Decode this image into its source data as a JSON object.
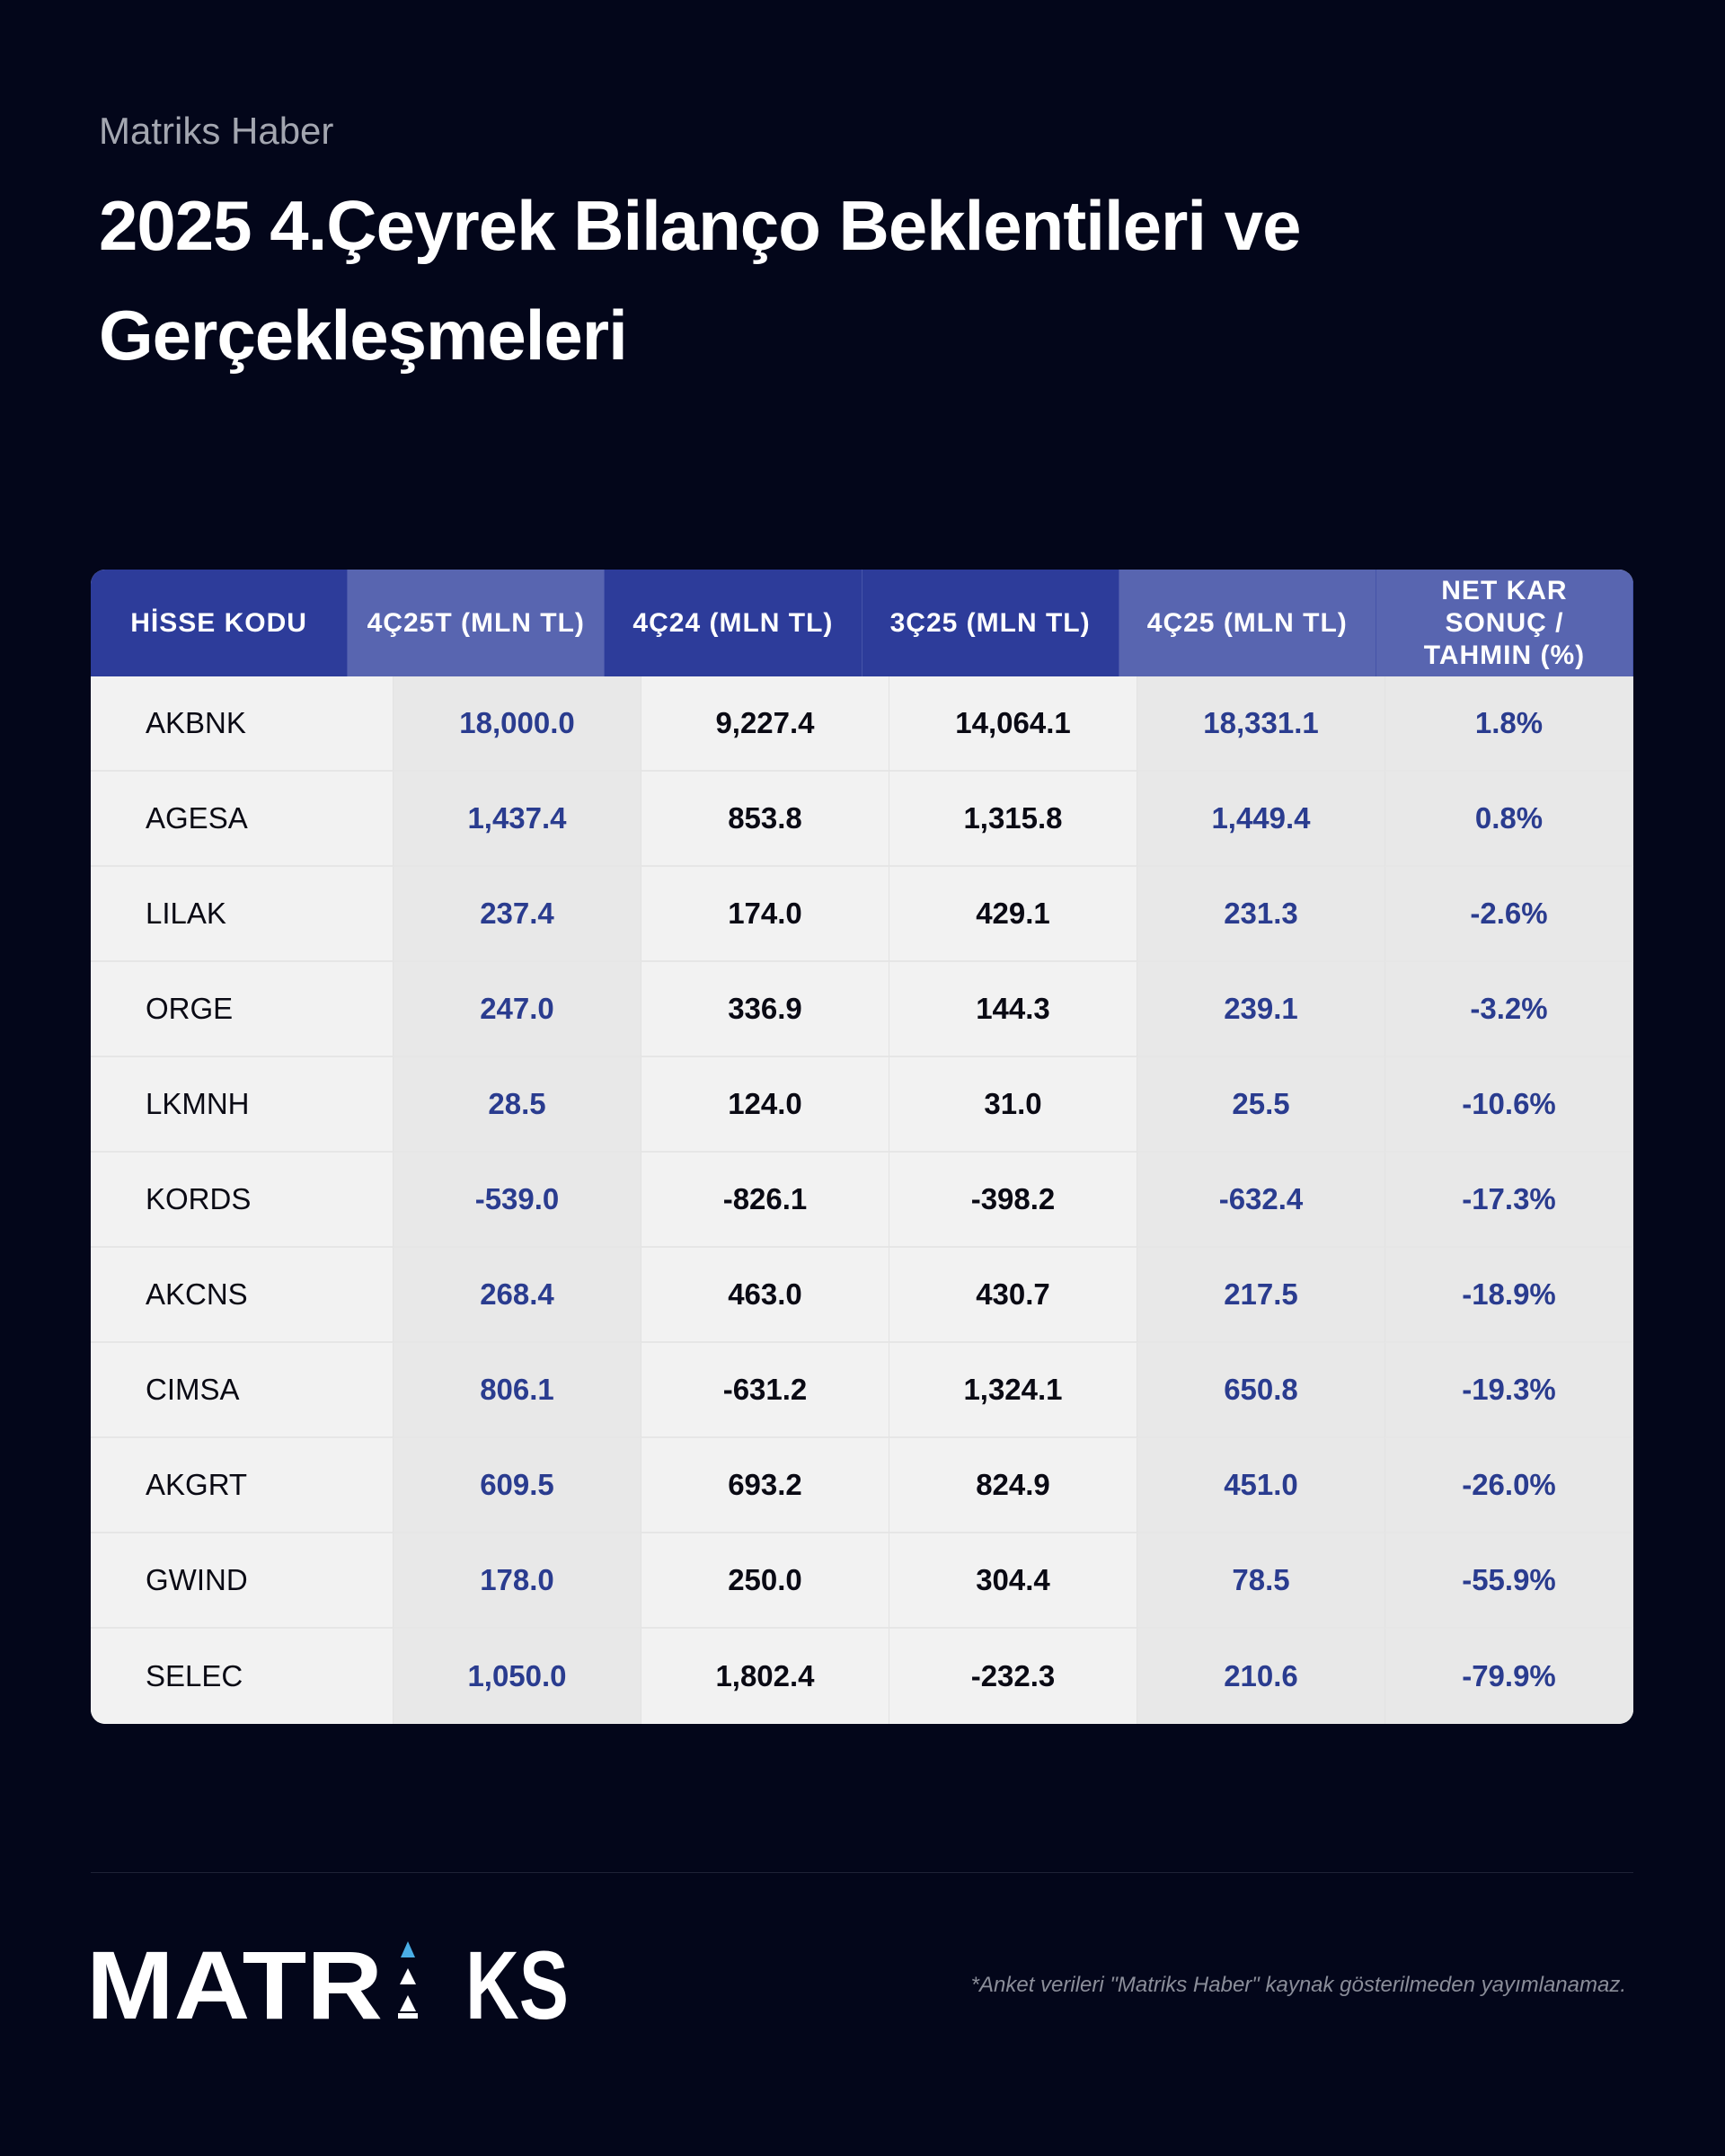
{
  "source": "Matriks Haber",
  "title": "2025 4.Çeyrek Bilanço Beklentileri ve Gerçekleşmeleri",
  "table": {
    "headers": [
      "HİSSE KODU",
      "4Ç25T (MLN TL)",
      "4Ç24 (MLN TL)",
      "3Ç25 (MLN TL)",
      "4Ç25 (MLN TL)",
      "NET KAR SONUÇ / TAHMIN (%)"
    ],
    "rows": [
      [
        "AKBNK",
        "18,000.0",
        "9,227.4",
        "14,064.1",
        "18,331.1",
        "1.8%"
      ],
      [
        "AGESA",
        "1,437.4",
        "853.8",
        "1,315.8",
        "1,449.4",
        "0.8%"
      ],
      [
        "LILAK",
        "237.4",
        "174.0",
        "429.1",
        "231.3",
        "-2.6%"
      ],
      [
        "ORGE",
        "247.0",
        "336.9",
        "144.3",
        "239.1",
        "-3.2%"
      ],
      [
        "LKMNH",
        "28.5",
        "124.0",
        "31.0",
        "25.5",
        "-10.6%"
      ],
      [
        "KORDS",
        "-539.0",
        "-826.1",
        "-398.2",
        "-632.4",
        "-17.3%"
      ],
      [
        "AKCNS",
        "268.4",
        "463.0",
        "430.7",
        "217.5",
        "-18.9%"
      ],
      [
        "CIMSA",
        "806.1",
        "-631.2",
        "1,324.1",
        "650.8",
        "-19.3%"
      ],
      [
        "AKGRT",
        "609.5",
        "693.2",
        "824.9",
        "451.0",
        "-26.0%"
      ],
      [
        "GWIND",
        "178.0",
        "250.0",
        "304.4",
        "78.5",
        "-55.9%"
      ],
      [
        "SELEC",
        "1,050.0",
        "1,802.4",
        "-232.3",
        "210.6",
        "-79.9%"
      ]
    ]
  },
  "logo": "MATRIKS",
  "footnote": "*Anket verileri \"Matriks Haber\" kaynak gösterilmeden yayımlanamaz.",
  "colors": {
    "background": "#03061a",
    "header": "#2d3c9a",
    "header_highlight": "#5865b0",
    "accent_text": "#2a3c8f",
    "logo_accent": "#4aaee6"
  }
}
